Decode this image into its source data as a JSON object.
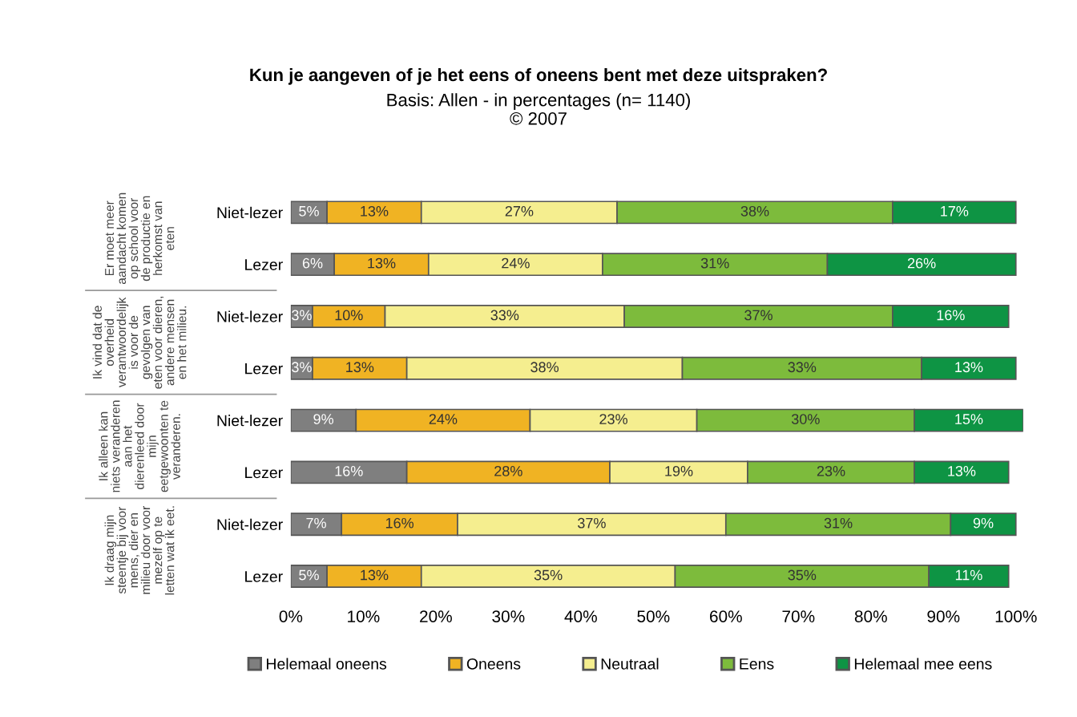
{
  "chart_data": {
    "type": "bar",
    "orientation": "horizontal",
    "stacked": true,
    "title": "Kun je aangeven of je het eens of oneens bent met deze uitspraken?",
    "subtitle": "Basis: Allen - in percentages (n= 1140)\n© 2007",
    "categories": [
      "Niet-lezer",
      "Lezer",
      "Niet-lezer",
      "Lezer",
      "Niet-lezer",
      "Lezer",
      "Niet-lezer",
      "Lezer"
    ],
    "series": [
      {
        "name": "Helemaal oneens",
        "color": "#7f7f7f",
        "values": [
          5,
          6,
          3,
          3,
          9,
          16,
          7,
          5
        ],
        "value_labels": [
          "5%",
          "6%",
          "3%",
          "3%",
          "9%",
          "16%",
          "7%",
          "5%"
        ]
      },
      {
        "name": "Oneens",
        "color": "#f0b323",
        "values": [
          13,
          13,
          10,
          13,
          24,
          28,
          16,
          13
        ],
        "value_labels": [
          "13%",
          "13%",
          "10%",
          "13%",
          "24%",
          "28%",
          "16%",
          "13%"
        ]
      },
      {
        "name": "Neutraal",
        "color": "#f5ee8f",
        "values": [
          27,
          24,
          33,
          38,
          23,
          19,
          37,
          35
        ],
        "value_labels": [
          "27%",
          "24%",
          "33%",
          "38%",
          "23%",
          "19%",
          "37%",
          "35%"
        ]
      },
      {
        "name": "Eens",
        "color": "#7dbb3c",
        "values": [
          38,
          31,
          37,
          33,
          30,
          23,
          31,
          35
        ],
        "value_labels": [
          "38%",
          "31%",
          "37%",
          "33%",
          "30%",
          "23%",
          "31%",
          "35%"
        ]
      },
      {
        "name": "Helemaal mee eens",
        "color": "#0e9444",
        "values": [
          17,
          26,
          16,
          13,
          15,
          13,
          9,
          11
        ],
        "value_labels": [
          "17%",
          "26%",
          "16%",
          "13%",
          "15%",
          "13%",
          "9%",
          "11%"
        ]
      }
    ],
    "annotations": [
      "Er moet meer aandacht komen op school voor de productie en herkomst van eten",
      "Ik vind dat de overheid verantwoordelijk is voor de gevolgen van eten voor dieren, andere mensen en het milieu.",
      "Ik alleen kan niets veranderen aan het dierenleed door mijn eetgewoonten te veranderen.",
      "Ik draag mijn steentje bij voor mens, dier en milieu door voor mezelf op te letten wat ik eet."
    ],
    "xlim": [
      0,
      101
    ],
    "xticks": [
      {
        "value": 0,
        "label": "0%"
      },
      {
        "value": 10,
        "label": "10%"
      },
      {
        "value": 20,
        "label": "20%"
      },
      {
        "value": 30,
        "label": "30%"
      },
      {
        "value": 40,
        "label": "40%"
      },
      {
        "value": 50,
        "label": "50%"
      },
      {
        "value": 60,
        "label": "60%"
      },
      {
        "value": 70,
        "label": "70%"
      },
      {
        "value": 80,
        "label": "80%"
      },
      {
        "value": 90,
        "label": "90%"
      },
      {
        "value": 100,
        "label": "100%"
      }
    ],
    "legend": "bottom",
    "grid": false
  }
}
